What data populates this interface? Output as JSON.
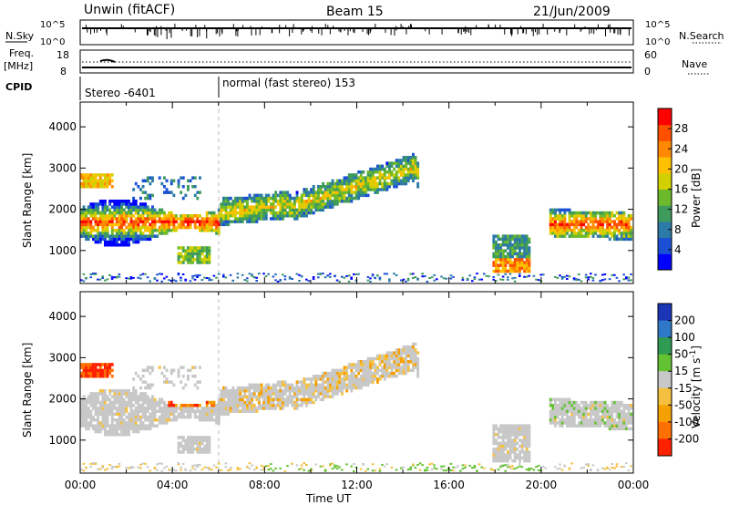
{
  "header": {
    "title": "Unwin (fitACF)",
    "beam": "Beam 15",
    "date": "21/Jun/2009"
  },
  "nsky_panel": {
    "left_label": "N.Sky",
    "right_label": "N.Search",
    "left_ticks": [
      "10^5",
      "10^0"
    ],
    "right_ticks": [
      "10^5",
      "10^0"
    ]
  },
  "freq_panel": {
    "left_label_1": "Freq.",
    "left_label_2": "[MHz]",
    "right_label": "Nave",
    "left_ticks": [
      "18",
      "8"
    ],
    "right_ticks": [
      "60",
      "0"
    ]
  },
  "cpid_panel": {
    "label": "CPID",
    "segments": [
      "Stereo -6401",
      "normal (fast stereo) 153"
    ]
  },
  "chart_data": [
    {
      "type": "heatmap",
      "name": "power",
      "ylabel": "Slant Range [km]",
      "yticks": [
        1000,
        2000,
        3000,
        4000
      ],
      "ylim": [
        200,
        4600
      ],
      "xlabel": "Time UT",
      "xticks": [
        "00:00",
        "04:00",
        "08:00",
        "12:00",
        "16:00",
        "20:00",
        "00:00"
      ],
      "xlim_hours": [
        0,
        24
      ],
      "colorbar": {
        "label": "Power [dB]",
        "tick_labels": [
          "4",
          "8",
          "12",
          "16",
          "20",
          "24",
          "28"
        ],
        "tick_values": [
          4,
          8,
          12,
          16,
          20,
          24,
          28
        ],
        "range": [
          0,
          32
        ],
        "colors": [
          "#0000ff",
          "#1a4fd6",
          "#2c7aa8",
          "#3f9b5c",
          "#6cba2b",
          "#d2d000",
          "#ffc000",
          "#ff8a00",
          "#ff5000",
          "#ff0000"
        ]
      }
    },
    {
      "type": "heatmap",
      "name": "velocity",
      "ylabel": "Slant Range [km]",
      "yticks": [
        1000,
        2000,
        3000,
        4000
      ],
      "ylim": [
        200,
        4600
      ],
      "xlabel": "Time UT",
      "xticks": [
        "00:00",
        "04:00",
        "08:00",
        "12:00",
        "16:00",
        "20:00",
        "00:00"
      ],
      "xlim_hours": [
        0,
        24
      ],
      "colorbar": {
        "label": "Velocity [m s^-1]",
        "tick_labels": [
          "200",
          "100",
          "50",
          "15",
          "-15",
          "-50",
          "-100",
          "-200"
        ],
        "colors": [
          "#1a35b5",
          "#2f78c8",
          "#2f9a52",
          "#63c232",
          "#c8c8c8",
          "#f5c040",
          "#f5a000",
          "#ff7000",
          "#ff2000"
        ]
      }
    }
  ]
}
